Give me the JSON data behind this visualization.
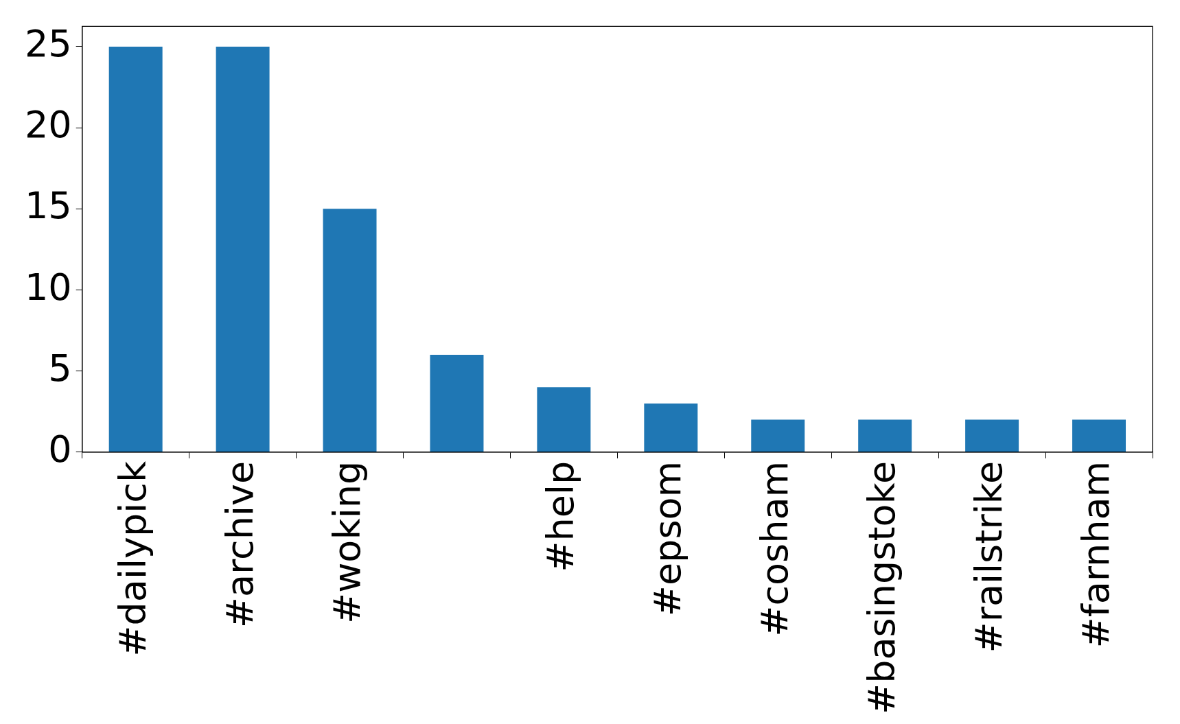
{
  "chart_data": {
    "type": "bar",
    "categories": [
      "#dailypick",
      "#archive",
      "#woking",
      null,
      "#help",
      "#epsom",
      "#cosham",
      "#basingstoke",
      "#railstrike",
      "#farnham"
    ],
    "values": [
      25,
      25,
      15,
      6,
      4,
      3,
      2,
      2,
      2,
      2
    ],
    "color": "#1f77b4",
    "ylim": [
      0,
      26.25
    ],
    "yticks": [
      0,
      5,
      10,
      15,
      20,
      25
    ],
    "grid": false,
    "legend": false
  }
}
